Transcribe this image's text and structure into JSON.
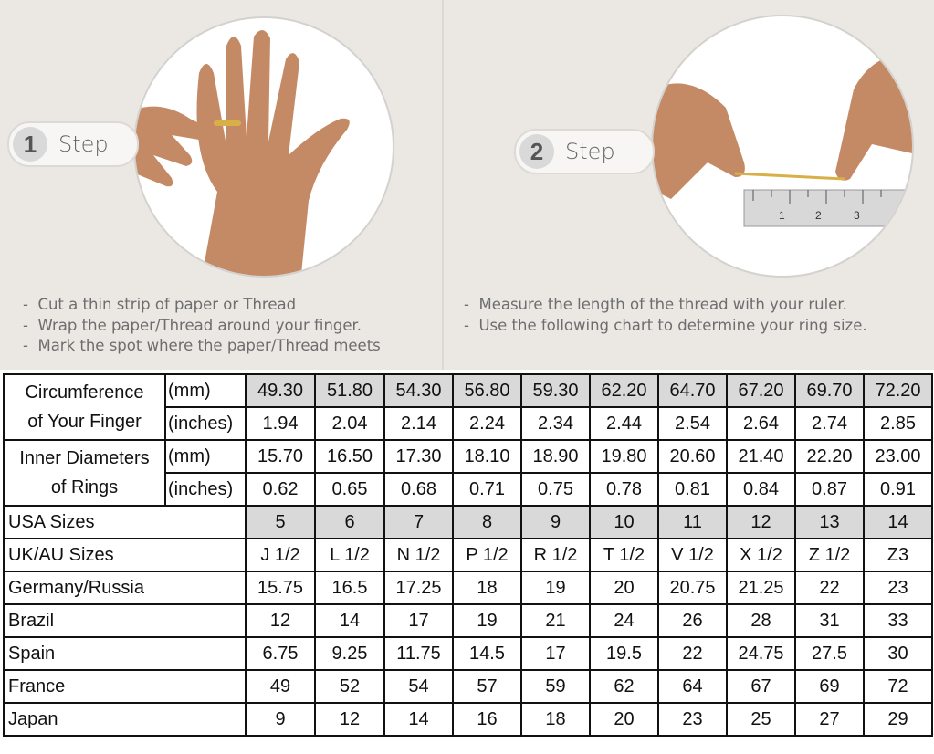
{
  "steps": [
    {
      "number": "1",
      "label": "Step",
      "bullets": [
        "Cut a thin strip of paper or Thread",
        "Wrap the paper/Thread around your finger.",
        "Mark the spot where the paper/Thread meets"
      ]
    },
    {
      "number": "2",
      "label": "Step",
      "bullets": [
        "Measure the length of the thread with your ruler.",
        "Use the following chart to determine your ring size."
      ]
    }
  ],
  "ruler_marks": [
    "1",
    "2",
    "3"
  ],
  "colors": {
    "highlight": "#d9d9d9",
    "border": "#111111",
    "background": "#ebe8e4"
  },
  "table": {
    "circumference": {
      "label": [
        "Circumference",
        "of Your Finger"
      ],
      "mm_unit": "(mm)",
      "inch_unit": "(inches)",
      "mm": [
        "49.30",
        "51.80",
        "54.30",
        "56.80",
        "59.30",
        "62.20",
        "64.70",
        "67.20",
        "69.70",
        "72.20"
      ],
      "inches": [
        "1.94",
        "2.04",
        "2.14",
        "2.24",
        "2.34",
        "2.44",
        "2.54",
        "2.64",
        "2.74",
        "2.85"
      ]
    },
    "diameter": {
      "label": [
        "Inner Diameters",
        "of Rings"
      ],
      "mm_unit": "(mm)",
      "inch_unit": "(inches)",
      "mm": [
        "15.70",
        "16.50",
        "17.30",
        "18.10",
        "18.90",
        "19.80",
        "20.60",
        "21.40",
        "22.20",
        "23.00"
      ],
      "inches": [
        "0.62",
        "0.65",
        "0.68",
        "0.71",
        "0.75",
        "0.78",
        "0.81",
        "0.84",
        "0.87",
        "0.91"
      ]
    },
    "rows": [
      {
        "label": "USA Sizes",
        "highlight": true,
        "values": [
          "5",
          "6",
          "7",
          "8",
          "9",
          "10",
          "11",
          "12",
          "13",
          "14"
        ]
      },
      {
        "label": "UK/AU Sizes",
        "values": [
          "J 1/2",
          "L 1/2",
          "N 1/2",
          "P 1/2",
          "R 1/2",
          "T 1/2",
          "V 1/2",
          "X 1/2",
          "Z 1/2",
          "Z3"
        ]
      },
      {
        "label": "Germany/Russia",
        "values": [
          "15.75",
          "16.5",
          "17.25",
          "18",
          "19",
          "20",
          "20.75",
          "21.25",
          "22",
          "23"
        ]
      },
      {
        "label": "Brazil",
        "values": [
          "12",
          "14",
          "17",
          "19",
          "21",
          "24",
          "26",
          "28",
          "31",
          "33"
        ]
      },
      {
        "label": "Spain",
        "values": [
          "6.75",
          "9.25",
          "11.75",
          "14.5",
          "17",
          "19.5",
          "22",
          "24.75",
          "27.5",
          "30"
        ]
      },
      {
        "label": "France",
        "values": [
          "49",
          "52",
          "54",
          "57",
          "59",
          "62",
          "64",
          "67",
          "69",
          "72"
        ]
      },
      {
        "label": "Japan",
        "values": [
          "9",
          "12",
          "14",
          "16",
          "18",
          "20",
          "23",
          "25",
          "27",
          "29"
        ]
      }
    ]
  }
}
